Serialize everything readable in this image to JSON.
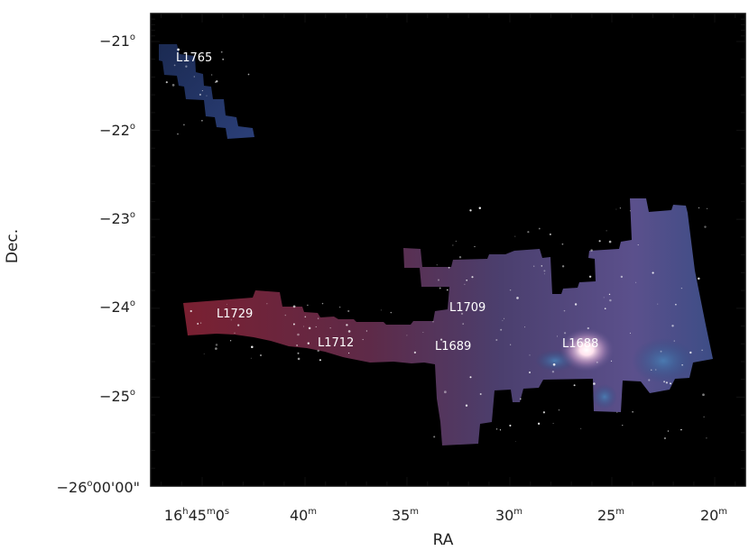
{
  "axes": {
    "x_label": "RA",
    "y_label": "Dec."
  },
  "x_ticks": [
    {
      "hm": "16",
      "mm": "45",
      "ss": "0",
      "h_unit": "h",
      "m_unit": "m",
      "s_unit": "s",
      "first": true
    },
    {
      "mm": "40",
      "m_unit": "m"
    },
    {
      "mm": "35",
      "m_unit": "m"
    },
    {
      "mm": "30",
      "m_unit": "m"
    },
    {
      "mm": "25",
      "m_unit": "m"
    },
    {
      "mm": "20",
      "m_unit": "m"
    }
  ],
  "y_ticks": [
    {
      "text": "−21",
      "unit": "o"
    },
    {
      "text": "−22",
      "unit": "o"
    },
    {
      "text": "−23",
      "unit": "o"
    },
    {
      "text": "−24",
      "unit": "o"
    },
    {
      "text": "−25",
      "unit": "o"
    },
    {
      "text": "−26",
      "unit": "o",
      "suffix": "00'00\""
    }
  ],
  "regions": [
    {
      "name": "L1765"
    },
    {
      "name": "L1729"
    },
    {
      "name": "L1712"
    },
    {
      "name": "L1709"
    },
    {
      "name": "L1689"
    },
    {
      "name": "L1688"
    }
  ],
  "colors": {
    "background": "#000000",
    "frame": "#111111",
    "nebula_red": "#7a2436",
    "nebula_purple": "#5a4a86",
    "nebula_blue": "#2f4f86",
    "bright_core": "#ffe8f0"
  }
}
